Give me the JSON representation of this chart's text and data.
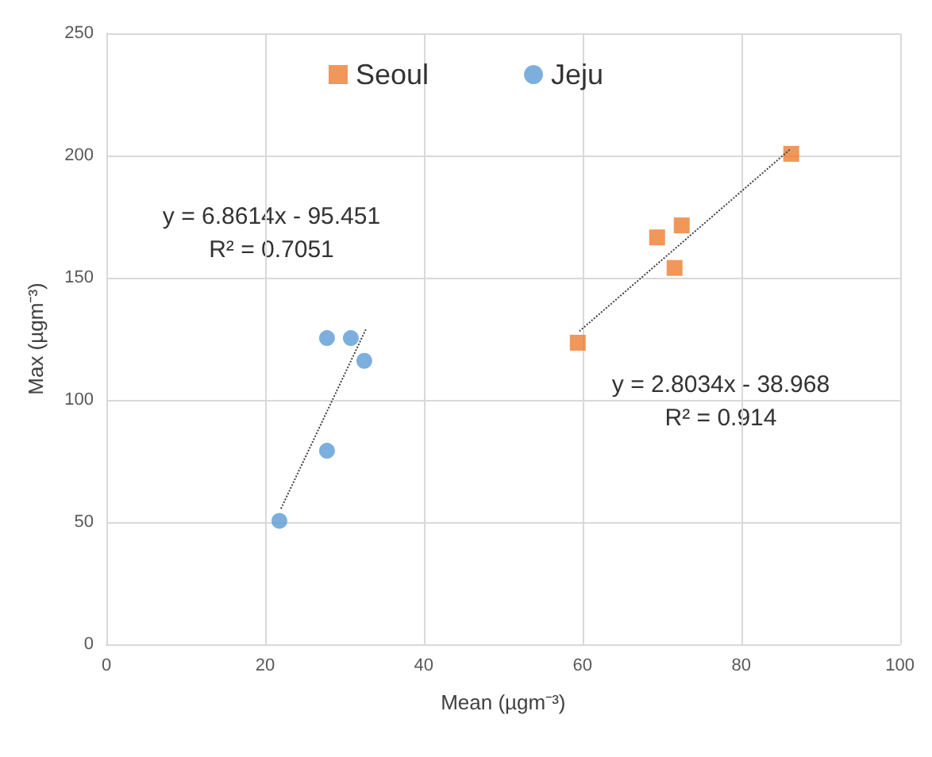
{
  "chart_data": {
    "type": "scatter",
    "xlabel": "Mean (µgm⁻³)",
    "ylabel": "Max (µgm⁻³)",
    "xlim": [
      0,
      100
    ],
    "xticks": [
      0,
      20,
      40,
      60,
      80,
      100
    ],
    "ylim": [
      0,
      250
    ],
    "yticks": [
      0,
      50,
      100,
      150,
      200,
      250
    ],
    "grid": true,
    "legend": "top",
    "series": [
      {
        "name": "Seoul",
        "color": "#ed7d31",
        "marker": "square",
        "x": [
          59.4,
          69.4,
          72.5,
          71.6,
          86.3
        ],
        "values": [
          123.4,
          166.5,
          171.4,
          154,
          200.7
        ]
      },
      {
        "name": "Jeju",
        "color": "#5b9bd5",
        "marker": "circle",
        "x": [
          21.8,
          27.8,
          27.8,
          30.8,
          32.5
        ],
        "values": [
          50.5,
          79.2,
          125.3,
          125.3,
          116
        ]
      },
      {
        "type": "line",
        "color": "#404040",
        "line_style": "dotted",
        "marker": "none",
        "x": [
          22,
          32.7
        ],
        "values": [
          55.5,
          128.9
        ]
      },
      {
        "type": "line",
        "color": "#404040",
        "line_style": "dotted",
        "marker": "none",
        "x": [
          59.6,
          86.1
        ],
        "values": [
          128.1,
          202.4
        ]
      }
    ],
    "annotations": [
      "y = 6.8614x - 95.451\nR² = 0.7051",
      "y = 2.8034x - 38.968\nR² = 0.914"
    ]
  }
}
